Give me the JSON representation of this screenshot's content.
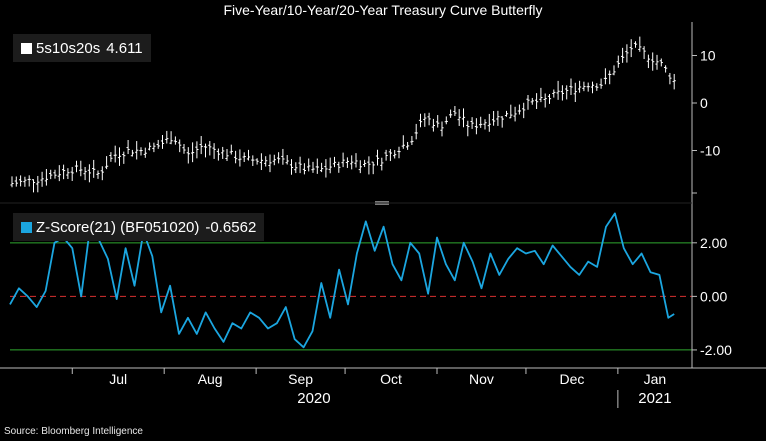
{
  "title": "Five-Year/10-Year/20-Year Treasury Curve Butterfly",
  "source": "Source: Bloomberg Intelligence",
  "colors": {
    "background": "#000000",
    "bars": "#ffffff",
    "zscore": "#1ba6e0",
    "band": "#2fa82f",
    "zero_line": "#d83030",
    "axis": "#bdbdbd",
    "panel_sep": "#7a7a7a"
  },
  "legend_top": {
    "name": "5s10s20s",
    "value": "4.611"
  },
  "legend_bottom": {
    "name": "Z-Score(21) (BF051020)",
    "value": "-0.6562"
  },
  "chart_data": [
    {
      "type": "ohlc",
      "series_name": "5s10s20s",
      "last_value": 4.611,
      "y_ticks": [
        "10",
        "0",
        "-10"
      ],
      "ylim": [
        -20,
        16
      ],
      "x": [
        "2020-06-10",
        "2020-06-15",
        "2020-06-20",
        "2020-06-25",
        "2020-06-30",
        "2020-07-05",
        "2020-07-10",
        "2020-07-15",
        "2020-07-20",
        "2020-07-25",
        "2020-07-30",
        "2020-08-04",
        "2020-08-09",
        "2020-08-14",
        "2020-08-19",
        "2020-08-24",
        "2020-08-29",
        "2020-09-03",
        "2020-09-08",
        "2020-09-13",
        "2020-09-18",
        "2020-09-23",
        "2020-09-28",
        "2020-10-03",
        "2020-10-08",
        "2020-10-13",
        "2020-10-18",
        "2020-10-23",
        "2020-10-28",
        "2020-11-02",
        "2020-11-07",
        "2020-11-12",
        "2020-11-17",
        "2020-11-22",
        "2020-11-27",
        "2020-12-02",
        "2020-12-07",
        "2020-12-12",
        "2020-12-17",
        "2020-12-22",
        "2020-12-27",
        "2021-01-01",
        "2021-01-06",
        "2021-01-11",
        "2021-01-16",
        "2021-01-20"
      ],
      "y": [
        -17,
        -16.5,
        -16,
        -15,
        -14,
        -14,
        -15,
        -11,
        -10,
        -10,
        -9,
        -7,
        -11,
        -9,
        -10,
        -11,
        -12,
        -12,
        -12,
        -13,
        -14,
        -14,
        -13,
        -12,
        -13,
        -12,
        -10,
        -8,
        -3,
        -5,
        -2,
        -5,
        -4,
        -3,
        -2,
        0,
        0.5,
        2,
        3,
        4,
        4,
        8,
        12,
        10,
        8,
        4.6
      ]
    },
    {
      "type": "line",
      "series_name": "Z-Score(21) (BF051020)",
      "last_value": -0.6562,
      "y_ticks": [
        "2.00",
        "0.00",
        "-2.00"
      ],
      "ylim": [
        -2.6,
        3.3
      ],
      "reference_lines": [
        2,
        0,
        -2
      ],
      "x": [
        "2020-06-10",
        "2020-06-13",
        "2020-06-16",
        "2020-06-19",
        "2020-06-22",
        "2020-06-25",
        "2020-06-28",
        "2020-07-01",
        "2020-07-04",
        "2020-07-07",
        "2020-07-10",
        "2020-07-13",
        "2020-07-16",
        "2020-07-19",
        "2020-07-22",
        "2020-07-25",
        "2020-07-28",
        "2020-07-31",
        "2020-08-03",
        "2020-08-06",
        "2020-08-09",
        "2020-08-12",
        "2020-08-15",
        "2020-08-18",
        "2020-08-21",
        "2020-08-24",
        "2020-08-27",
        "2020-08-30",
        "2020-09-02",
        "2020-09-05",
        "2020-09-08",
        "2020-09-11",
        "2020-09-14",
        "2020-09-17",
        "2020-09-20",
        "2020-09-23",
        "2020-09-26",
        "2020-09-29",
        "2020-10-02",
        "2020-10-05",
        "2020-10-08",
        "2020-10-11",
        "2020-10-14",
        "2020-10-17",
        "2020-10-20",
        "2020-10-23",
        "2020-10-26",
        "2020-10-29",
        "2020-11-01",
        "2020-11-04",
        "2020-11-07",
        "2020-11-10",
        "2020-11-13",
        "2020-11-16",
        "2020-11-19",
        "2020-11-22",
        "2020-11-25",
        "2020-11-28",
        "2020-12-01",
        "2020-12-04",
        "2020-12-07",
        "2020-12-10",
        "2020-12-13",
        "2020-12-16",
        "2020-12-19",
        "2020-12-22",
        "2020-12-25",
        "2020-12-28",
        "2020-12-31",
        "2021-01-03",
        "2021-01-06",
        "2021-01-09",
        "2021-01-12",
        "2021-01-15",
        "2021-01-18",
        "2021-01-20"
      ],
      "y": [
        -0.3,
        0.3,
        0,
        -0.4,
        0.2,
        2.0,
        2.2,
        1.8,
        0,
        2.6,
        2.1,
        1.4,
        -0.1,
        1.8,
        0.4,
        2.4,
        1.5,
        -0.6,
        0.4,
        -1.4,
        -0.8,
        -1.4,
        -0.6,
        -1.2,
        -1.7,
        -1.0,
        -1.2,
        -0.6,
        -0.8,
        -1.2,
        -1.0,
        -0.4,
        -1.6,
        -1.9,
        -1.3,
        0.5,
        -0.8,
        1.0,
        -0.3,
        1.6,
        2.8,
        1.7,
        2.6,
        1.2,
        0.6,
        2.0,
        1.6,
        0.1,
        2.2,
        1.2,
        0.6,
        2.0,
        1.3,
        0.3,
        1.6,
        0.8,
        1.4,
        1.8,
        1.6,
        1.7,
        1.2,
        1.9,
        1.5,
        1.1,
        0.8,
        1.3,
        1.1,
        2.6,
        3.1,
        1.8,
        1.2,
        1.6,
        0.9,
        0.8,
        -0.8,
        -0.66
      ]
    }
  ],
  "x_axis": {
    "months": [
      "Jul",
      "Aug",
      "Sep",
      "Oct",
      "Nov",
      "Dec",
      "Jan"
    ],
    "years": [
      "2020",
      "2021"
    ]
  }
}
